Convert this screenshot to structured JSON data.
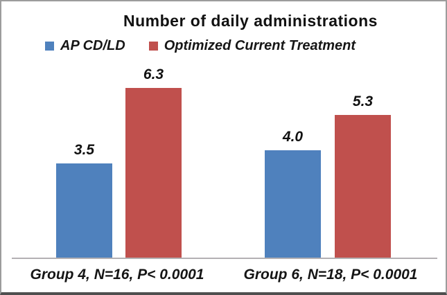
{
  "chart_data": {
    "type": "bar",
    "title": "Number of daily administrations",
    "categories": [
      "Group 4, N=16, P< 0.0001",
      "Group 6, N=18, P< 0.0001"
    ],
    "series": [
      {
        "name": "AP CD/LD",
        "color": "#4f81bd",
        "values": [
          3.5,
          4.0
        ],
        "labels": [
          "3.5",
          "4.0"
        ]
      },
      {
        "name": "Optimized Current Treatment",
        "color": "#c0504d",
        "values": [
          6.3,
          5.3
        ],
        "labels": [
          "6.3",
          "5.3"
        ]
      }
    ],
    "ylim": [
      0,
      7
    ],
    "grid": false,
    "legend_position": "top",
    "xlabel": "",
    "ylabel": "",
    "axis_line_color": "#b3b0b3"
  }
}
